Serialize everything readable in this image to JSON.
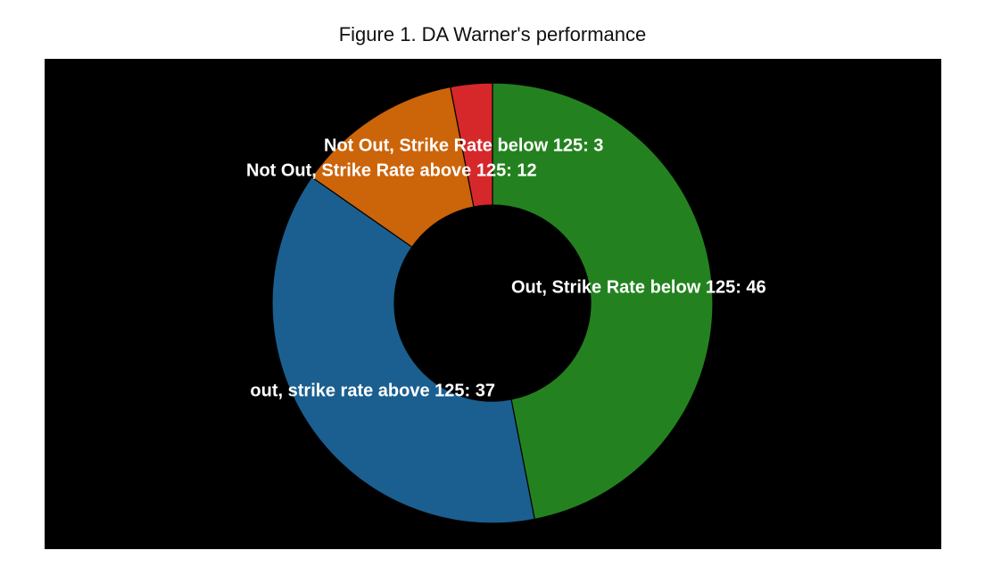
{
  "figure": {
    "title": "Figure 1. DA Warner's performance"
  },
  "chart_data": {
    "type": "pie",
    "donut": true,
    "title": "Figure 1. DA Warner's performance",
    "background": "#000000",
    "start_angle_deg": 0,
    "direction": "clockwise",
    "slices": [
      {
        "name": "Out, Strike Rate below 125",
        "value": 46,
        "label": "Out, Strike Rate below 125: 46",
        "color": "#23821f"
      },
      {
        "name": "out, strike rate above 125",
        "value": 37,
        "label": "out, strike rate above 125: 37",
        "color": "#1a5f8f"
      },
      {
        "name": "Not Out, Strike Rate above 125",
        "value": 12,
        "label": "Not Out, Strike Rate above 125: 12",
        "color": "#cc640a"
      },
      {
        "name": "Not Out, Strike Rate below 125",
        "value": 3,
        "label": "Not Out, Strike Rate below 125: 3",
        "color": "#d6282b"
      }
    ]
  }
}
